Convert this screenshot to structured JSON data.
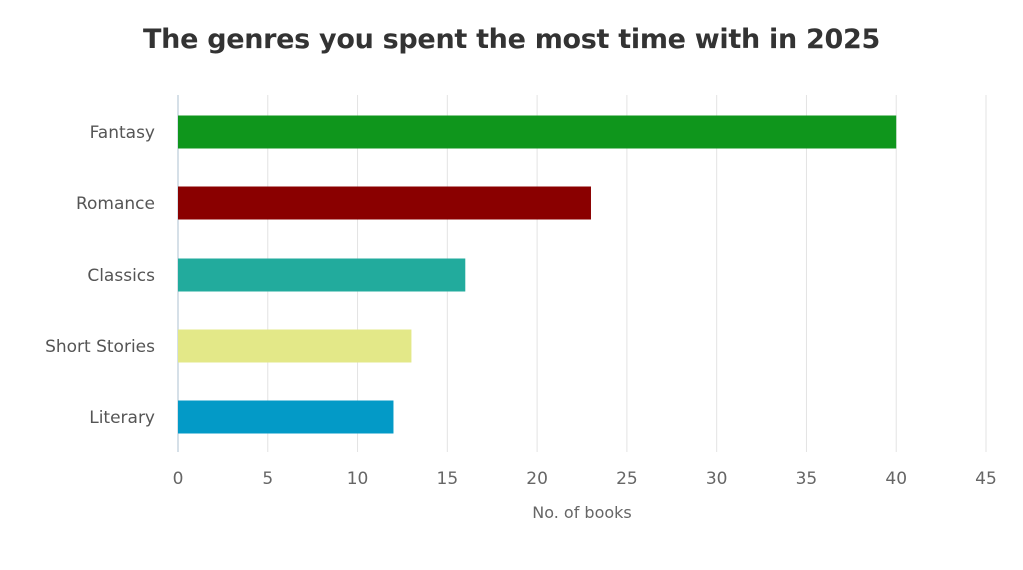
{
  "chart_data": {
    "type": "bar",
    "orientation": "horizontal",
    "title": "The genres you spent the most time with in 2025",
    "xlabel": "No. of books",
    "ylabel": "",
    "categories": [
      "Fantasy",
      "Romance",
      "Classics",
      "Short Stories",
      "Literary"
    ],
    "values": [
      40,
      23,
      16,
      13,
      12
    ],
    "colors": [
      "#0f961c",
      "#8a0000",
      "#22ab9d",
      "#e3e888",
      "#039ac7"
    ],
    "xlim": [
      0,
      45
    ],
    "xticks": [
      0,
      5,
      10,
      15,
      20,
      25,
      30,
      35,
      40,
      45
    ],
    "grid": "vertical",
    "legend": "none"
  }
}
